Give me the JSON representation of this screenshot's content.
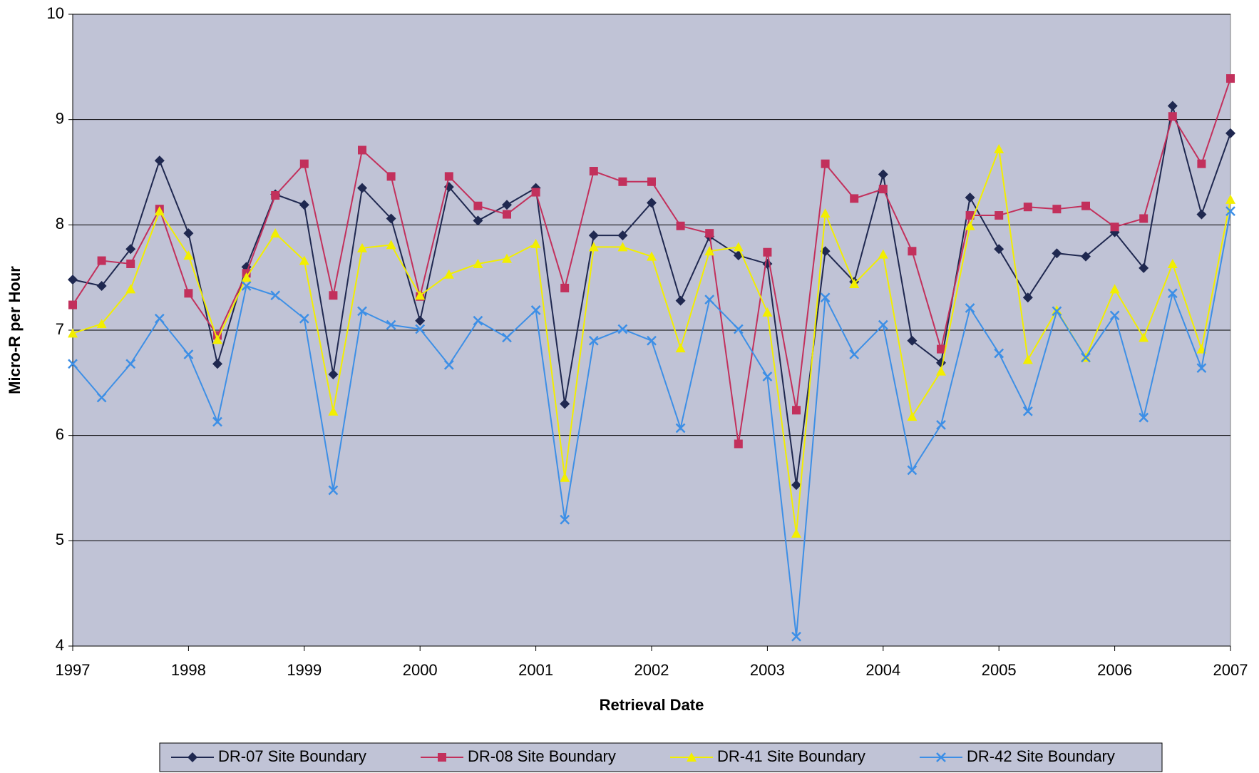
{
  "chart_data": {
    "type": "line",
    "x_label": "Retrieval Date",
    "y_label": "Micro-R per Hour",
    "x": [
      1997,
      1997.25,
      1997.5,
      1997.75,
      1998,
      1998.25,
      1998.5,
      1998.75,
      1999,
      1999.25,
      1999.5,
      1999.75,
      2000,
      2000.25,
      2000.5,
      2000.75,
      2001,
      2001.25,
      2001.5,
      2001.75,
      2002,
      2002.25,
      2002.5,
      2002.75,
      2003,
      2003.25,
      2003.5,
      2003.75,
      2004,
      2004.25,
      2004.5,
      2004.75,
      2005,
      2005.25,
      2005.5,
      2005.75,
      2006,
      2006.25,
      2006.5,
      2006.75,
      2007
    ],
    "series": [
      {
        "name": "DR-07 Site Boundary",
        "color": "#1f2850",
        "marker": "diamond",
        "values": [
          7.48,
          7.42,
          7.77,
          8.61,
          7.92,
          6.68,
          7.6,
          8.29,
          8.19,
          6.58,
          8.35,
          8.06,
          7.09,
          8.36,
          8.04,
          8.19,
          8.35,
          6.3,
          7.9,
          7.9,
          8.21,
          7.28,
          7.89,
          7.71,
          7.63,
          5.53,
          7.75,
          7.46,
          8.48,
          6.9,
          6.69,
          8.26,
          7.77,
          7.31,
          7.73,
          7.7,
          7.93,
          7.59,
          9.13,
          8.1,
          8.87
        ]
      },
      {
        "name": "DR-08 Site Boundary",
        "color": "#c2305c",
        "marker": "square",
        "values": [
          7.24,
          7.66,
          7.63,
          8.15,
          7.35,
          6.95,
          7.54,
          8.28,
          8.58,
          7.33,
          8.71,
          8.46,
          7.32,
          8.46,
          8.18,
          8.1,
          8.31,
          7.4,
          8.51,
          8.41,
          8.41,
          7.99,
          7.92,
          5.92,
          7.74,
          6.24,
          8.58,
          8.25,
          8.34,
          7.75,
          6.82,
          8.09,
          8.09,
          8.17,
          8.15,
          8.18,
          7.98,
          8.06,
          9.03,
          8.58,
          9.39
        ]
      },
      {
        "name": "DR-41 Site Boundary",
        "color": "#f2ee00",
        "marker": "triangle",
        "values": [
          6.97,
          7.06,
          7.39,
          8.13,
          7.71,
          6.91,
          7.5,
          7.92,
          7.66,
          6.23,
          7.78,
          7.81,
          7.33,
          7.53,
          7.63,
          7.68,
          7.82,
          5.6,
          7.79,
          7.79,
          7.7,
          6.83,
          7.75,
          7.79,
          7.17,
          5.07,
          8.11,
          7.44,
          7.72,
          6.18,
          6.61,
          7.99,
          8.72,
          6.72,
          7.19,
          6.74,
          7.39,
          6.93,
          7.63,
          6.82,
          8.24
        ]
      },
      {
        "name": "DR-42 Site Boundary",
        "color": "#3d8fe6",
        "marker": "x",
        "values": [
          6.68,
          6.36,
          6.68,
          7.11,
          6.77,
          6.13,
          7.42,
          7.33,
          7.11,
          5.48,
          7.18,
          7.05,
          7.01,
          6.67,
          7.09,
          6.93,
          7.19,
          5.2,
          6.9,
          7.01,
          6.9,
          6.07,
          7.29,
          7.01,
          6.56,
          4.09,
          7.31,
          6.77,
          7.05,
          5.67,
          6.1,
          7.21,
          6.78,
          6.23,
          7.18,
          6.74,
          7.14,
          6.17,
          7.35,
          6.64,
          8.13
        ]
      }
    ],
    "xlim": [
      1997,
      2007
    ],
    "xticks": [
      1997,
      1998,
      1999,
      2000,
      2001,
      2002,
      2003,
      2004,
      2005,
      2006,
      2007
    ],
    "ylim": [
      4,
      10
    ],
    "yticks": [
      4,
      5,
      6,
      7,
      8,
      9,
      10
    ],
    "grid": true,
    "legend": "bottom",
    "plot_background": "#c0c3d6"
  }
}
